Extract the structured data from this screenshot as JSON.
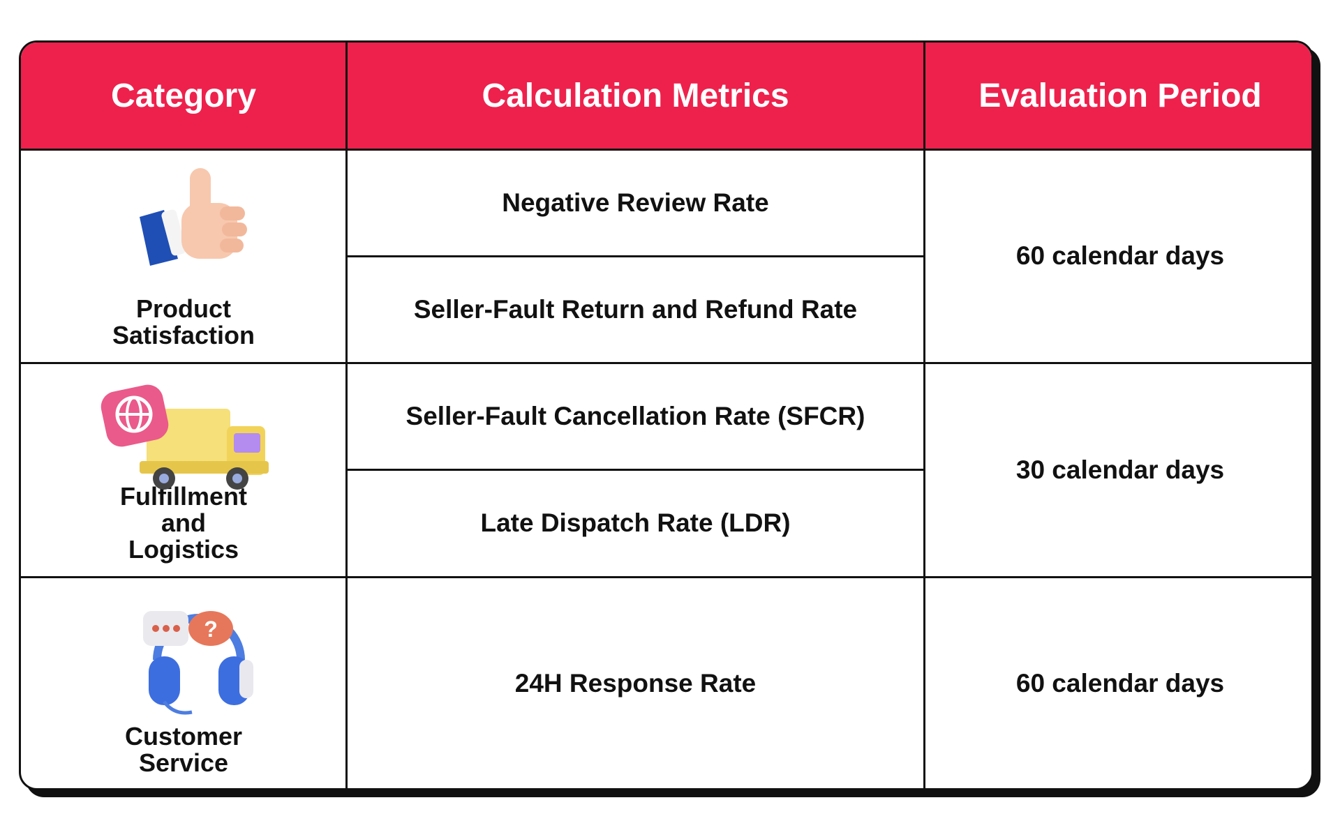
{
  "table": {
    "header": [
      "Category",
      "Calculation Metrics",
      "Evaluation Period"
    ],
    "rows": [
      {
        "category": "Product Satisfaction",
        "metrics": [
          "Negative Review Rate",
          "Seller-Fault Return and Refund Rate"
        ],
        "period": "60 calendar days"
      },
      {
        "category": "Fulfillment and Logistics",
        "metrics": [
          "Seller-Fault Cancellation Rate (SFCR)",
          "Late Dispatch Rate (LDR)"
        ],
        "period": "30 calendar days"
      },
      {
        "category": "Customer Service",
        "metrics": [
          "24H Response Rate"
        ],
        "period": "60 calendar days"
      }
    ]
  }
}
